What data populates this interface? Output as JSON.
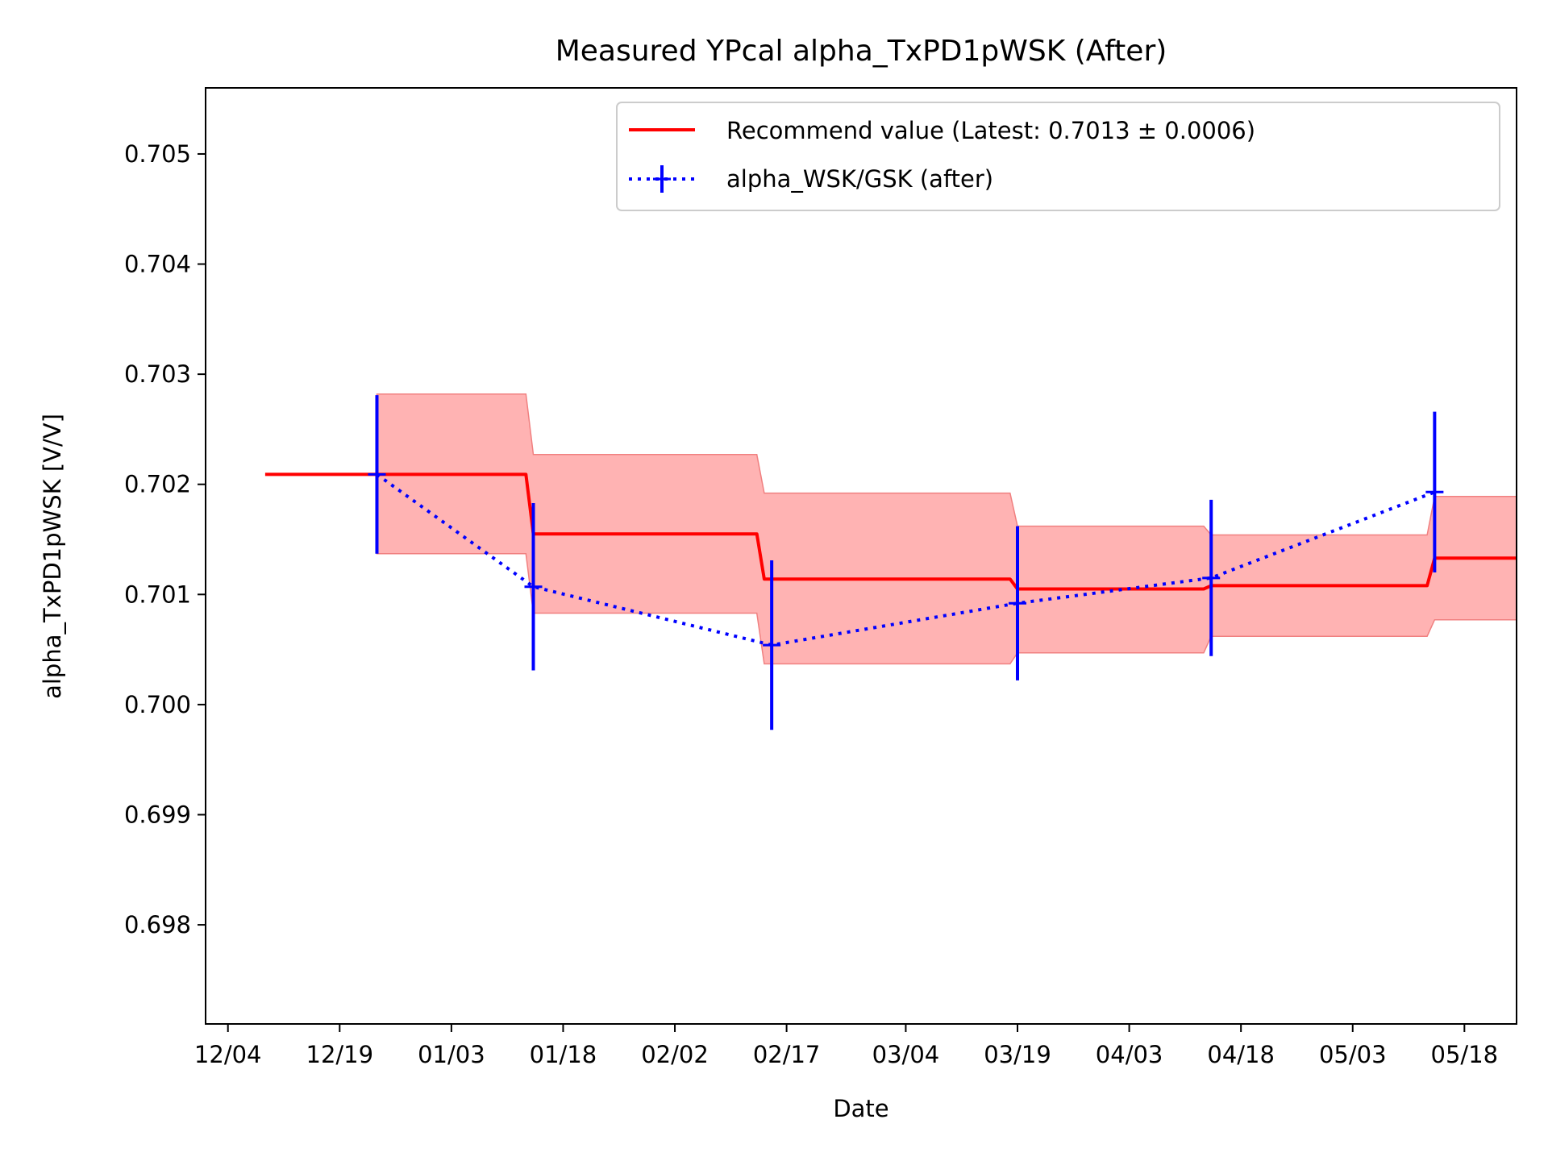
{
  "chart_data": {
    "type": "line",
    "title": "Measured YPcal alpha_TxPD1pWSK (After)",
    "xlabel": "Date",
    "ylabel": "alpha_TxPD1pWSK [V/V]",
    "x_ticks": [
      "12/04",
      "12/19",
      "01/03",
      "01/18",
      "02/02",
      "02/17",
      "03/04",
      "03/19",
      "04/03",
      "04/18",
      "05/03",
      "05/18"
    ],
    "y_ticks": [
      "0.698",
      "0.699",
      "0.700",
      "0.701",
      "0.702",
      "0.703",
      "0.704",
      "0.705"
    ],
    "xlim": [
      "2023-12-01",
      "2024-05-25"
    ],
    "ylim": [
      0.6971,
      0.7056
    ],
    "grid": false,
    "legend_position": "upper right",
    "legend": {
      "recommend": "Recommend value (Latest: 0.7013 ± 0.0006)",
      "measured": "alpha_WSK/GSK (after)"
    },
    "colors": {
      "recommend": "#ff0000",
      "band": "#ffb3b3",
      "measured": "#0000ff"
    },
    "series": [
      {
        "name": "Recommend value (Latest: 0.7013 ± 0.0006)",
        "kind": "step_line_with_band",
        "points": [
          {
            "x": "2023-12-09",
            "y": 0.70209
          },
          {
            "x": "2023-12-24",
            "y": 0.70209,
            "lo": 0.70137,
            "hi": 0.70282
          },
          {
            "x": "2024-01-13",
            "y": 0.70209,
            "lo": 0.70137,
            "hi": 0.70282
          },
          {
            "x": "2024-01-14",
            "y": 0.70155,
            "lo": 0.70083,
            "hi": 0.70227
          },
          {
            "x": "2024-02-13",
            "y": 0.70155,
            "lo": 0.70083,
            "hi": 0.70227
          },
          {
            "x": "2024-02-14",
            "y": 0.70114,
            "lo": 0.70037,
            "hi": 0.70192
          },
          {
            "x": "2024-03-18",
            "y": 0.70114,
            "lo": 0.70037,
            "hi": 0.70192
          },
          {
            "x": "2024-03-19",
            "y": 0.70105,
            "lo": 0.70047,
            "hi": 0.70162
          },
          {
            "x": "2024-04-13",
            "y": 0.70105,
            "lo": 0.70047,
            "hi": 0.70162
          },
          {
            "x": "2024-04-14",
            "y": 0.70108,
            "lo": 0.70062,
            "hi": 0.70154
          },
          {
            "x": "2024-05-13",
            "y": 0.70108,
            "lo": 0.70062,
            "hi": 0.70154
          },
          {
            "x": "2024-05-14",
            "y": 0.70133,
            "lo": 0.70077,
            "hi": 0.70189
          },
          {
            "x": "2024-05-25",
            "y": 0.70133,
            "lo": 0.70077,
            "hi": 0.70189
          }
        ]
      },
      {
        "name": "alpha_WSK/GSK (after)",
        "kind": "errorbar_dotted",
        "points": [
          {
            "x": "2023-12-24",
            "y": 0.70209,
            "err": 0.00072
          },
          {
            "x": "2024-01-14",
            "y": 0.70107,
            "err": 0.00076
          },
          {
            "x": "2024-02-15",
            "y": 0.70054,
            "err": 0.00077
          },
          {
            "x": "2024-03-19",
            "y": 0.70092,
            "err": 0.0007
          },
          {
            "x": "2024-04-14",
            "y": 0.70115,
            "err": 0.00071
          },
          {
            "x": "2024-05-14",
            "y": 0.70193,
            "err": 0.00073
          }
        ]
      }
    ]
  }
}
